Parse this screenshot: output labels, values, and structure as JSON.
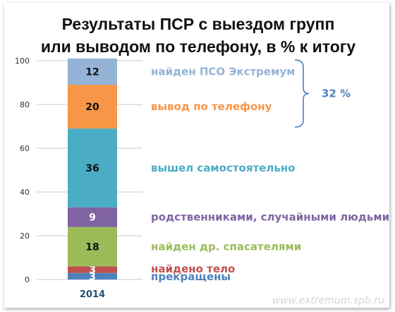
{
  "chart_data": {
    "type": "bar",
    "stacked": true,
    "title_lines": [
      "Результаты ПСР с выездом групп",
      "или выводом по телефону, в % к итогу"
    ],
    "categories": [
      "2014"
    ],
    "ylim": [
      0,
      100
    ],
    "yticks": [
      "0",
      "20",
      "40",
      "60",
      "80",
      "100"
    ],
    "series": [
      {
        "name": "прекращены",
        "values": [
          3
        ],
        "value_label": "3",
        "color": "#4f81bd",
        "value_color": "#ffffff"
      },
      {
        "name": "найдено тело",
        "values": [
          3
        ],
        "value_label": "3",
        "color": "#c0504d",
        "value_color": "#ffffff"
      },
      {
        "name": "найден др. спасателями",
        "values": [
          18
        ],
        "value_label": "18",
        "color": "#9bbb59",
        "value_color": "#111111"
      },
      {
        "name": "родственниками, случайными людьми",
        "values": [
          9
        ],
        "value_label": "9",
        "color": "#8064a2",
        "value_color": "#ffffff"
      },
      {
        "name": "вышел самостоятельно",
        "values": [
          36
        ],
        "value_label": "36",
        "color": "#4bacc6",
        "value_color": "#111111"
      },
      {
        "name": "вывод по телефону",
        "values": [
          20
        ],
        "value_label": "20",
        "color": "#f79646",
        "value_color": "#111111"
      },
      {
        "name": "найден ПСО Экстремум",
        "values": [
          12
        ],
        "value_label": "12",
        "color": "#95b3d7",
        "value_color": "#111111"
      }
    ],
    "annotation": {
      "text": "32 %",
      "spans": [
        "вывод по телефону",
        "найден ПСО Экстремум"
      ],
      "color": "#4f81bd"
    },
    "grid": true,
    "legend": "right"
  },
  "watermark": "www.extremum.spb.ru"
}
